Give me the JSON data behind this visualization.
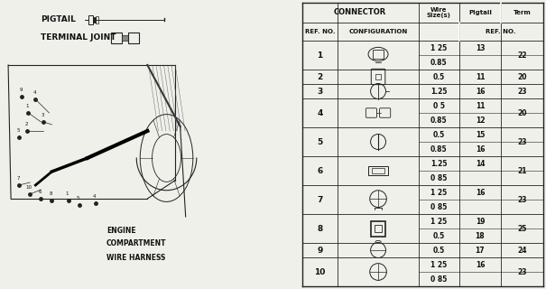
{
  "bg_color": "#f0f0eb",
  "table_bg": "#ffffff",
  "line_color": "#222222",
  "text_color": "#111111",
  "table_data": [
    {
      "ref": "1",
      "wire": [
        "1 25",
        "0.85"
      ],
      "pigtail": [
        "13",
        ""
      ],
      "term": "22",
      "sub": 2
    },
    {
      "ref": "2",
      "wire": [
        "0.5",
        ""
      ],
      "pigtail": [
        "11",
        ""
      ],
      "term": "20",
      "sub": 1
    },
    {
      "ref": "3",
      "wire": [
        "1.25",
        ""
      ],
      "pigtail": [
        "16",
        ""
      ],
      "term": "23",
      "sub": 1
    },
    {
      "ref": "4",
      "wire": [
        "0 5",
        "0.85"
      ],
      "pigtail": [
        "11",
        "12"
      ],
      "term": "20",
      "sub": 2
    },
    {
      "ref": "5",
      "wire": [
        "0.5",
        "0.85"
      ],
      "pigtail": [
        "15",
        "16"
      ],
      "term": "23",
      "sub": 2
    },
    {
      "ref": "6",
      "wire": [
        "1.25",
        "0 85"
      ],
      "pigtail": [
        "14",
        ""
      ],
      "term": "21",
      "sub": 2
    },
    {
      "ref": "7",
      "wire": [
        "1 25",
        "0 85"
      ],
      "pigtail": [
        "16",
        ""
      ],
      "term": "23",
      "sub": 2
    },
    {
      "ref": "8",
      "wire": [
        "1 25",
        "0.5"
      ],
      "pigtail": [
        "19",
        "18"
      ],
      "term": "25",
      "sub": 2
    },
    {
      "ref": "9",
      "wire": [
        "0.5",
        ""
      ],
      "pigtail": [
        "17",
        ""
      ],
      "term": "24",
      "sub": 1
    },
    {
      "ref": "10",
      "wire": [
        "1 25",
        "0 85"
      ],
      "pigtail": [
        "16",
        ""
      ],
      "term": "23",
      "sub": 2
    }
  ]
}
